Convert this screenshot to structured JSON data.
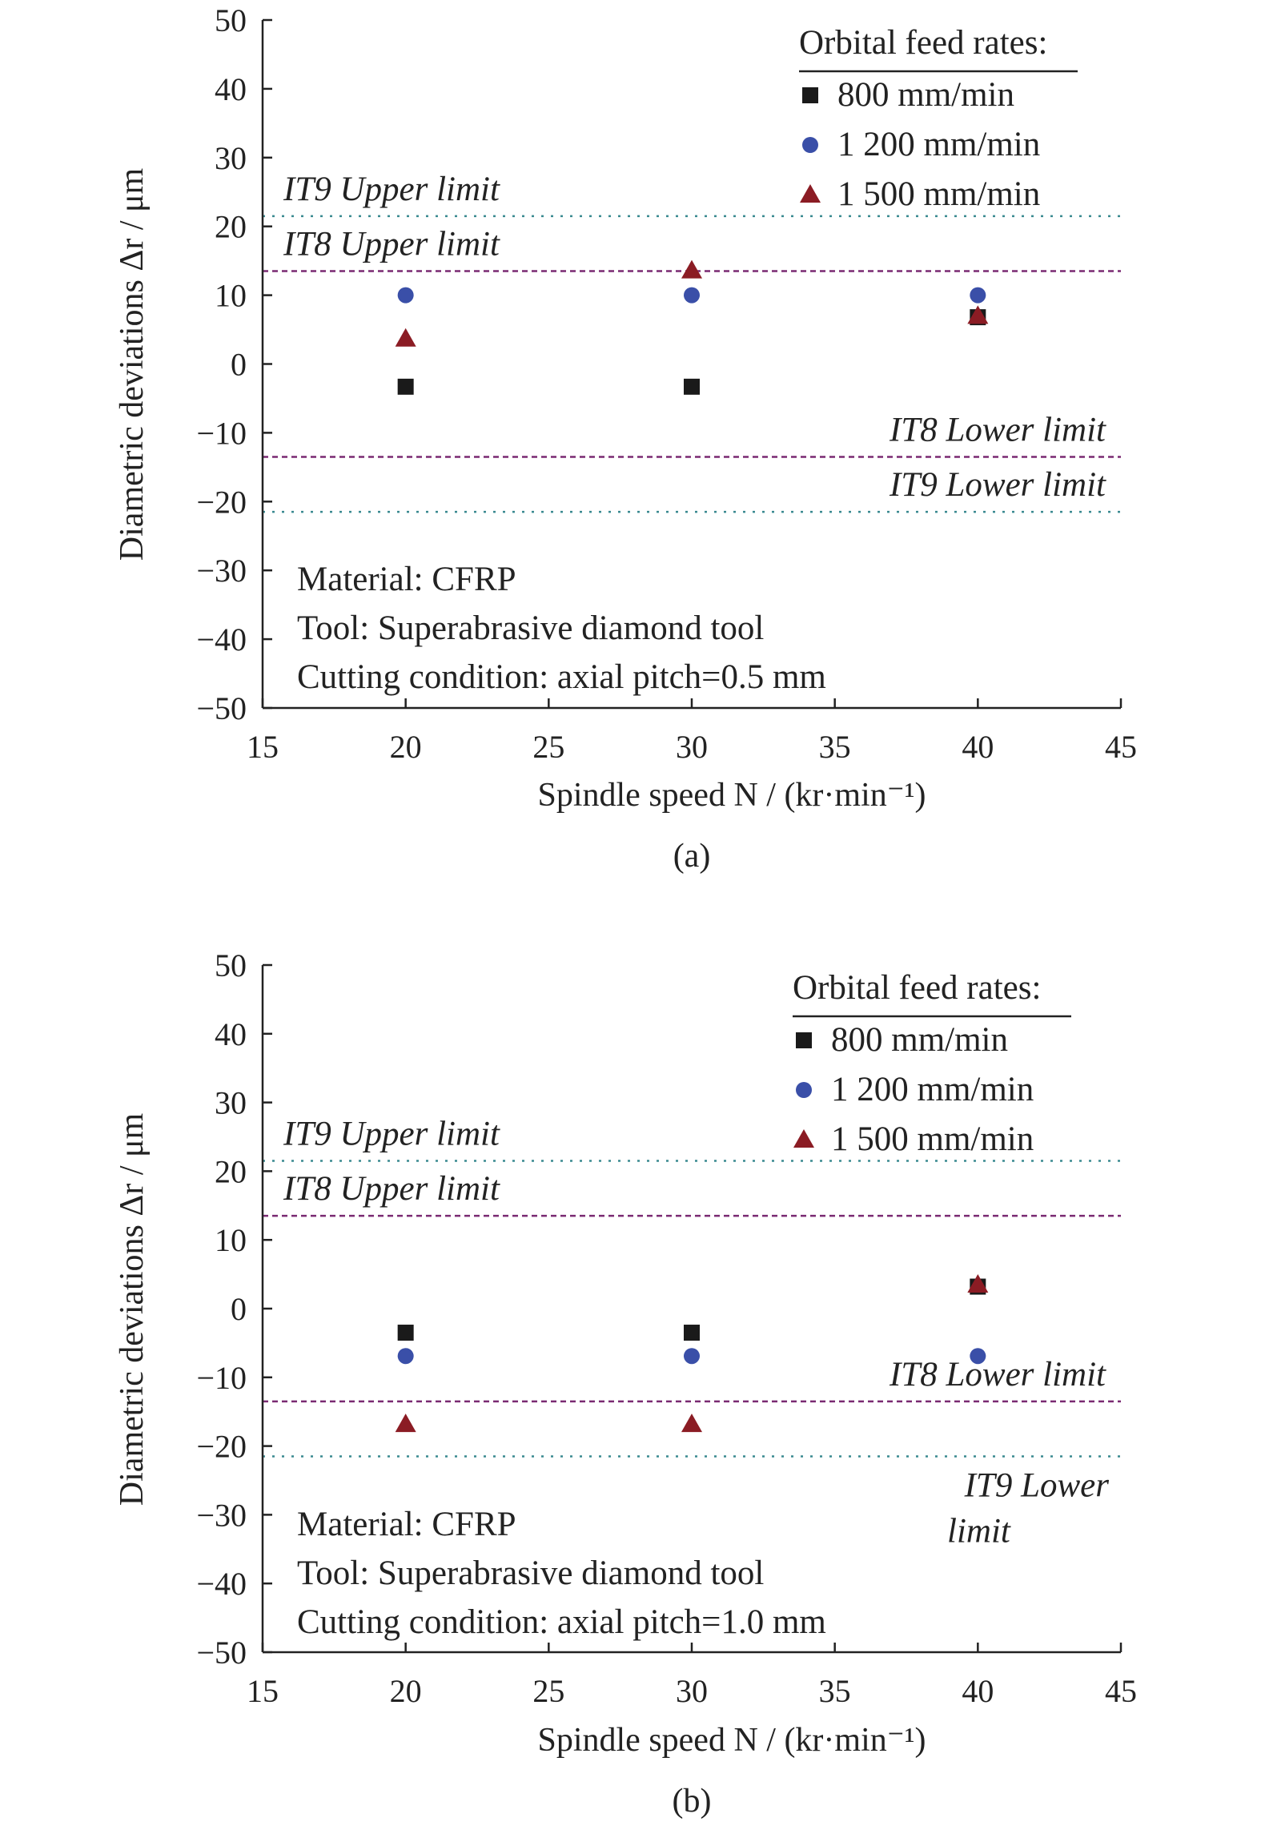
{
  "colors": {
    "s800": "#1a1a1a",
    "s1200": "#3a4fa8",
    "s1500": "#8b1c24",
    "it8": "#7a2a72",
    "it9": "#3a8a90",
    "axis": "#222222"
  },
  "chart_data": [
    {
      "type": "scatter",
      "caption": "(a)",
      "xlabel": "Spindle speed N / (kr·min⁻¹)",
      "ylabel": "Diametric deviations Δr / μm",
      "xlim": [
        15,
        45
      ],
      "ylim": [
        -50,
        50
      ],
      "xticks": [
        15,
        20,
        25,
        30,
        35,
        40,
        45
      ],
      "yticks": [
        50,
        40,
        30,
        20,
        10,
        0,
        -10,
        -20,
        -30,
        -40,
        -50
      ],
      "legend": {
        "title": "Orbital feed rates:",
        "position": "top-right"
      },
      "series": [
        {
          "name": "800 mm/min",
          "marker": "square",
          "x": [
            20,
            30,
            40
          ],
          "y": [
            -3.3,
            -3.3,
            6.8
          ]
        },
        {
          "name": "1 200 mm/min",
          "marker": "circle",
          "x": [
            20,
            30,
            40
          ],
          "y": [
            10,
            10,
            10
          ]
        },
        {
          "name": "1 500 mm/min",
          "marker": "triangle",
          "x": [
            20,
            30,
            40
          ],
          "y": [
            3.7,
            13.6,
            7
          ]
        }
      ],
      "limits": [
        {
          "label": "IT9 Upper limit",
          "value": 21.5,
          "style": "it9"
        },
        {
          "label": "IT8 Upper limit",
          "value": 13.5,
          "style": "it8"
        },
        {
          "label": "IT8 Lower limit",
          "value": -13.5,
          "style": "it8"
        },
        {
          "label": "IT9 Lower limit",
          "value": -21.5,
          "style": "it9"
        }
      ],
      "notes": [
        "Material: CFRP",
        "Tool: Superabrasive diamond tool",
        "Cutting condition: axial pitch=0.5 mm"
      ]
    },
    {
      "type": "scatter",
      "caption": "(b)",
      "xlabel": "Spindle speed N / (kr·min⁻¹)",
      "ylabel": "Diametric deviations Δr / μm",
      "xlim": [
        15,
        45
      ],
      "ylim": [
        -50,
        50
      ],
      "xticks": [
        15,
        20,
        25,
        30,
        35,
        40,
        45
      ],
      "yticks": [
        50,
        40,
        30,
        20,
        10,
        0,
        -10,
        -20,
        -30,
        -40,
        -50
      ],
      "legend": {
        "title": "Orbital feed rates:",
        "position": "top-right"
      },
      "series": [
        {
          "name": "800 mm/min",
          "marker": "square",
          "x": [
            20,
            30,
            40
          ],
          "y": [
            -3.5,
            -3.5,
            3.2
          ]
        },
        {
          "name": "1 200 mm/min",
          "marker": "circle",
          "x": [
            20,
            30,
            40
          ],
          "y": [
            -6.9,
            -6.9,
            -6.9
          ]
        },
        {
          "name": "1 500 mm/min",
          "marker": "triangle",
          "x": [
            20,
            30,
            40
          ],
          "y": [
            -16.8,
            -16.8,
            3.5
          ]
        }
      ],
      "limits": [
        {
          "label": "IT9 Upper limit",
          "value": 21.5,
          "style": "it9"
        },
        {
          "label": "IT8 Upper limit",
          "value": 13.5,
          "style": "it8"
        },
        {
          "label": "IT8 Lower limit",
          "value": -13.5,
          "style": "it8"
        },
        {
          "label": "IT9 Lower limit",
          "value": -21.5,
          "style": "it9",
          "wrap": [
            "IT9 Lower",
            "limit"
          ]
        }
      ],
      "notes": [
        "Material: CFRP",
        "Tool: Superabrasive diamond tool",
        "Cutting condition: axial pitch=1.0 mm"
      ]
    }
  ]
}
